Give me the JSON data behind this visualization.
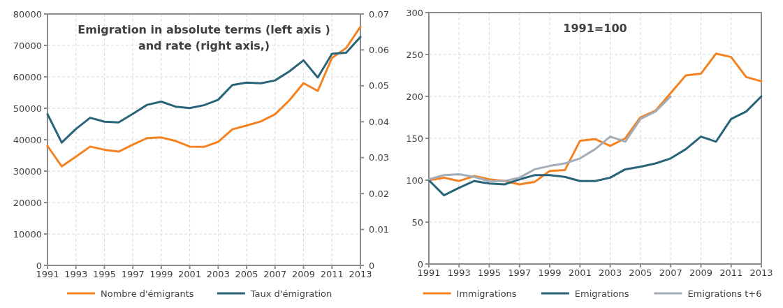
{
  "chart_data": [
    {
      "type": "line",
      "title": "Emigration in absolute terms (left axis ) and rate (right axis,)",
      "x": [
        1991,
        1992,
        1993,
        1994,
        1995,
        1996,
        1997,
        1998,
        1999,
        2000,
        2001,
        2002,
        2003,
        2004,
        2005,
        2006,
        2007,
        2008,
        2009,
        2010,
        2011,
        2012,
        2013
      ],
      "series": [
        {
          "name": "Nombre d'émigrants",
          "color": "#f58220",
          "values": [
            38000,
            31500,
            34600,
            37800,
            36800,
            36200,
            38400,
            40500,
            40700,
            39600,
            37800,
            37700,
            39300,
            43300,
            44500,
            45800,
            48100,
            52500,
            58000,
            55500,
            66000,
            69200,
            75900
          ]
        },
        {
          "name": "Taux d'émigration",
          "color": "#2a6478",
          "axis": "y2",
          "values": [
            0.0421,
            0.0342,
            0.038,
            0.0411,
            0.04,
            0.0398,
            0.0422,
            0.0447,
            0.0456,
            0.0442,
            0.0438,
            0.0446,
            0.0461,
            0.0502,
            0.0509,
            0.0507,
            0.0515,
            0.054,
            0.0571,
            0.0523,
            0.0589,
            0.0592,
            0.0636
          ]
        }
      ],
      "xlim": [
        1991,
        2013
      ],
      "xticks": [
        1991,
        1993,
        1995,
        1997,
        1999,
        2001,
        2003,
        2005,
        2007,
        2009,
        2011,
        2013
      ],
      "ylim": [
        0,
        80000
      ],
      "yticks": [
        0,
        10000,
        20000,
        30000,
        40000,
        50000,
        60000,
        70000,
        80000
      ],
      "y2lim": [
        0,
        0.07
      ],
      "y2ticks": [
        0,
        0.01,
        0.02,
        0.03,
        0.04,
        0.05,
        0.06,
        0.07
      ],
      "grid": true,
      "legend": "bottom",
      "line_style": "solid",
      "marker": "none"
    },
    {
      "type": "line",
      "title": "1991=100",
      "x": [
        1991,
        1992,
        1993,
        1994,
        1995,
        1996,
        1997,
        1998,
        1999,
        2000,
        2001,
        2002,
        2003,
        2004,
        2005,
        2006,
        2007,
        2008,
        2009,
        2010,
        2011,
        2012,
        2013
      ],
      "series": [
        {
          "name": "Immigrations",
          "color": "#f58220",
          "values": [
            100,
            103,
            99,
            105,
            101,
            99,
            95,
            98,
            111,
            112,
            147,
            149,
            141,
            150,
            175,
            183,
            204,
            225,
            227,
            251,
            247,
            223,
            218
          ]
        },
        {
          "name": "Emigrations",
          "color": "#2a6478",
          "values": [
            100,
            82,
            91,
            99,
            96,
            95,
            101,
            106,
            106,
            104,
            99,
            99,
            103,
            113,
            116,
            120,
            126,
            137,
            152,
            146,
            173,
            182,
            200
          ]
        },
        {
          "name": "Emigrations t+6",
          "color": "#a3adb8",
          "x": [
            1991,
            1992,
            1993,
            1994,
            1995,
            1996,
            1997,
            1998,
            1999,
            2000,
            2001,
            2002,
            2003,
            2004,
            2005,
            2006,
            2007
          ],
          "values": [
            101,
            106,
            107,
            104,
            99,
            99,
            103,
            113,
            117,
            120,
            126,
            137,
            152,
            146,
            173,
            182,
            200
          ]
        }
      ],
      "xlim": [
        1991,
        2013
      ],
      "xticks": [
        1991,
        1993,
        1995,
        1997,
        1999,
        2001,
        2003,
        2005,
        2007,
        2009,
        2011,
        2013
      ],
      "ylim": [
        0,
        300
      ],
      "yticks": [
        0,
        50,
        100,
        150,
        200,
        250,
        300
      ],
      "grid": true,
      "legend": "bottom",
      "line_style": "solid",
      "marker": "none"
    }
  ]
}
